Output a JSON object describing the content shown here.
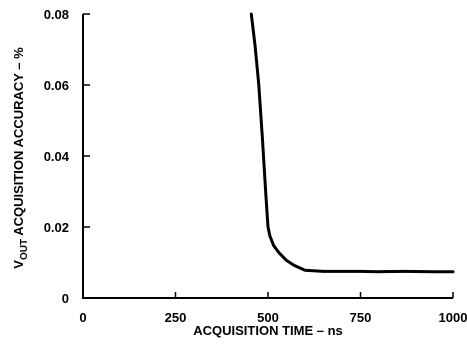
{
  "chart_data": {
    "type": "line",
    "xlabel": "ACQUISITION TIME – ns",
    "ylabel": {
      "prefix": "V",
      "subscript": "OUT",
      "rest": " ACQUISITION ACCURACY – %"
    },
    "xlim": [
      0,
      1000
    ],
    "ylim": [
      0,
      0.08
    ],
    "x_ticks": [
      0,
      250,
      500,
      750,
      1000
    ],
    "x_tick_labels": [
      "0",
      "250",
      "500",
      "750",
      "1000"
    ],
    "y_ticks": [
      0,
      0.02,
      0.04,
      0.06,
      0.08
    ],
    "y_tick_labels": [
      "0",
      "0.02",
      "0.04",
      "0.06",
      "0.08"
    ],
    "grid": false,
    "series": [
      {
        "x": [
          455,
          465,
          475,
          485,
          495,
          500,
          505,
          515,
          530,
          550,
          570,
          600,
          650,
          700,
          750,
          800,
          870,
          950,
          1000
        ],
        "y": [
          0.08,
          0.071,
          0.06,
          0.045,
          0.028,
          0.02,
          0.0175,
          0.0148,
          0.0127,
          0.0106,
          0.0092,
          0.0078,
          0.0075,
          0.0075,
          0.0075,
          0.0074,
          0.0075,
          0.0074,
          0.0074
        ]
      }
    ]
  }
}
